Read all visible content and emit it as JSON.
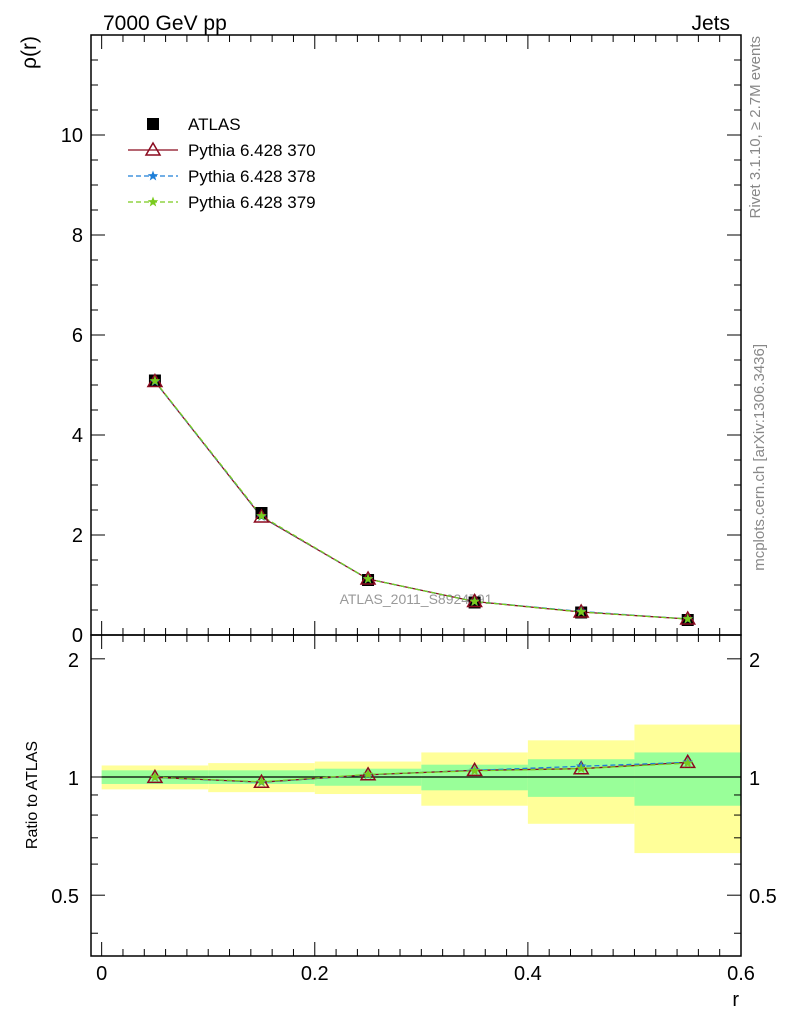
{
  "header": {
    "left": "7000 GeV pp",
    "right": "Jets"
  },
  "side_labels": {
    "rivet": "Rivet 3.1.10, ≥ 2.7M events",
    "mcplots": "mcplots.cern.ch [arXiv:1306.3436]"
  },
  "watermark": "ATLAS_2011_S8924791",
  "chart_data": [
    {
      "type": "line",
      "ylabel": "ρ(r)",
      "xlabel": "",
      "xlim": [
        -0.01,
        0.6
      ],
      "ylim": [
        0,
        12
      ],
      "y_ticks": [
        "0",
        "2",
        "4",
        "6",
        "8",
        "10"
      ],
      "y_tick_values": [
        0,
        2,
        4,
        6,
        8,
        10
      ],
      "x": [
        0.05,
        0.15,
        0.25,
        0.35,
        0.45,
        0.55
      ],
      "legend_position": "top-left",
      "series": [
        {
          "name": "ATLAS",
          "values": [
            5.09,
            2.44,
            1.1,
            0.65,
            0.45,
            0.3
          ],
          "color": "#000000",
          "marker": "square",
          "line": "none"
        },
        {
          "name": "Pythia 6.428 370",
          "values": [
            5.07,
            2.36,
            1.12,
            0.67,
            0.46,
            0.32
          ],
          "color": "#8b0a1f",
          "marker": "triangle",
          "line": "solid"
        },
        {
          "name": "Pythia 6.428 378",
          "values": [
            5.07,
            2.37,
            1.12,
            0.67,
            0.47,
            0.32
          ],
          "color": "#1e7fd8",
          "marker": "star",
          "line": "dashed"
        },
        {
          "name": "Pythia 6.428 379",
          "values": [
            5.08,
            2.38,
            1.12,
            0.67,
            0.46,
            0.32
          ],
          "color": "#7acb1e",
          "marker": "star",
          "line": "dashed"
        }
      ]
    },
    {
      "type": "line",
      "ylabel": "Ratio to ATLAS",
      "xlabel": "r",
      "xlim": [
        -0.01,
        0.6
      ],
      "ylim": [
        0.35,
        2.3
      ],
      "x_ticks": [
        "0",
        "0.2",
        "0.4",
        "0.6"
      ],
      "x_tick_values": [
        0,
        0.2,
        0.4,
        0.6
      ],
      "y_ticks": [
        "0.5",
        "1",
        "2"
      ],
      "y_tick_values": [
        0.5,
        1,
        2
      ],
      "bands": [
        {
          "x_low": 0.0,
          "x_high": 0.1,
          "stat_low": 0.96,
          "stat_high": 1.04,
          "total_low": 0.93,
          "total_high": 1.07
        },
        {
          "x_low": 0.1,
          "x_high": 0.2,
          "stat_low": 0.96,
          "stat_high": 1.04,
          "total_low": 0.915,
          "total_high": 1.085
        },
        {
          "x_low": 0.2,
          "x_high": 0.3,
          "stat_low": 0.95,
          "stat_high": 1.05,
          "total_low": 0.905,
          "total_high": 1.095
        },
        {
          "x_low": 0.3,
          "x_high": 0.4,
          "stat_low": 0.925,
          "stat_high": 1.075,
          "total_low": 0.845,
          "total_high": 1.155
        },
        {
          "x_low": 0.4,
          "x_high": 0.5,
          "stat_low": 0.89,
          "stat_high": 1.11,
          "total_low": 0.76,
          "total_high": 1.24
        },
        {
          "x_low": 0.5,
          "x_high": 0.6,
          "stat_low": 0.845,
          "stat_high": 1.155,
          "total_low": 0.64,
          "total_high": 1.36
        }
      ],
      "band_colors": {
        "stat": "#99ff99",
        "total": "#ffff99"
      },
      "x": [
        0.05,
        0.15,
        0.25,
        0.35,
        0.45,
        0.55
      ],
      "series": [
        {
          "name": "Pythia 6.428 370",
          "values": [
            0.998,
            0.97,
            1.013,
            1.04,
            1.05,
            1.09
          ],
          "color": "#8b0a1f",
          "marker": "triangle",
          "line": "solid"
        },
        {
          "name": "Pythia 6.428 378",
          "values": [
            0.998,
            0.97,
            1.013,
            1.04,
            1.065,
            1.09
          ],
          "color": "#1e7fd8",
          "marker": "star",
          "line": "dashed"
        },
        {
          "name": "Pythia 6.428 379",
          "values": [
            0.999,
            0.972,
            1.015,
            1.037,
            1.05,
            1.085
          ],
          "color": "#7acb1e",
          "marker": "star",
          "line": "dashed"
        }
      ]
    }
  ]
}
